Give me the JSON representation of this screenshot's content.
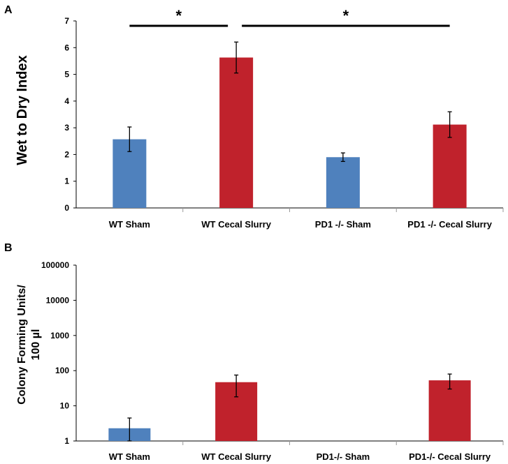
{
  "colors": {
    "sham": "#4f81bd",
    "slurry": "#c0222c",
    "axis": "#000000",
    "sep": "#999999"
  },
  "chart_data": [
    {
      "panel": "A",
      "type": "bar",
      "ylabel": "Wet to Dry Index",
      "xlabel": "",
      "ylim": [
        0,
        7
      ],
      "yticks": [
        "0",
        "1",
        "2",
        "3",
        "4",
        "5",
        "6",
        "7"
      ],
      "categories": [
        "WT Sham",
        "WT Cecal Slurry",
        "PD1 -/- Sham",
        "PD1 -/- Cecal Slurry"
      ],
      "values": [
        2.57,
        5.63,
        1.9,
        3.12
      ],
      "errors": [
        0.46,
        0.58,
        0.16,
        0.48
      ],
      "bar_colors": [
        "sham",
        "slurry",
        "sham",
        "slurry"
      ],
      "significance": [
        {
          "from": 0,
          "to": 1,
          "label": "*"
        },
        {
          "from": 1,
          "to": 3,
          "label": "*"
        }
      ]
    },
    {
      "panel": "B",
      "type": "bar",
      "yscale": "log",
      "ylabel_lines": [
        "Colony Forming Units/",
        "100 µl"
      ],
      "xlabel": "",
      "ylim": [
        1,
        100000
      ],
      "yticks": [
        "1",
        "10",
        "100",
        "1000",
        "10000",
        "100000"
      ],
      "categories": [
        "WT Sham",
        "WT Cecal Slurry",
        "PD1-/- Sham",
        "PD1-/- Cecal Slurry"
      ],
      "values": [
        2.3,
        47,
        null,
        53
      ],
      "err_low": [
        1.0,
        18,
        null,
        30
      ],
      "err_high": [
        4.5,
        75,
        null,
        80
      ],
      "bar_colors": [
        "sham",
        "slurry",
        "sham",
        "slurry"
      ]
    }
  ]
}
